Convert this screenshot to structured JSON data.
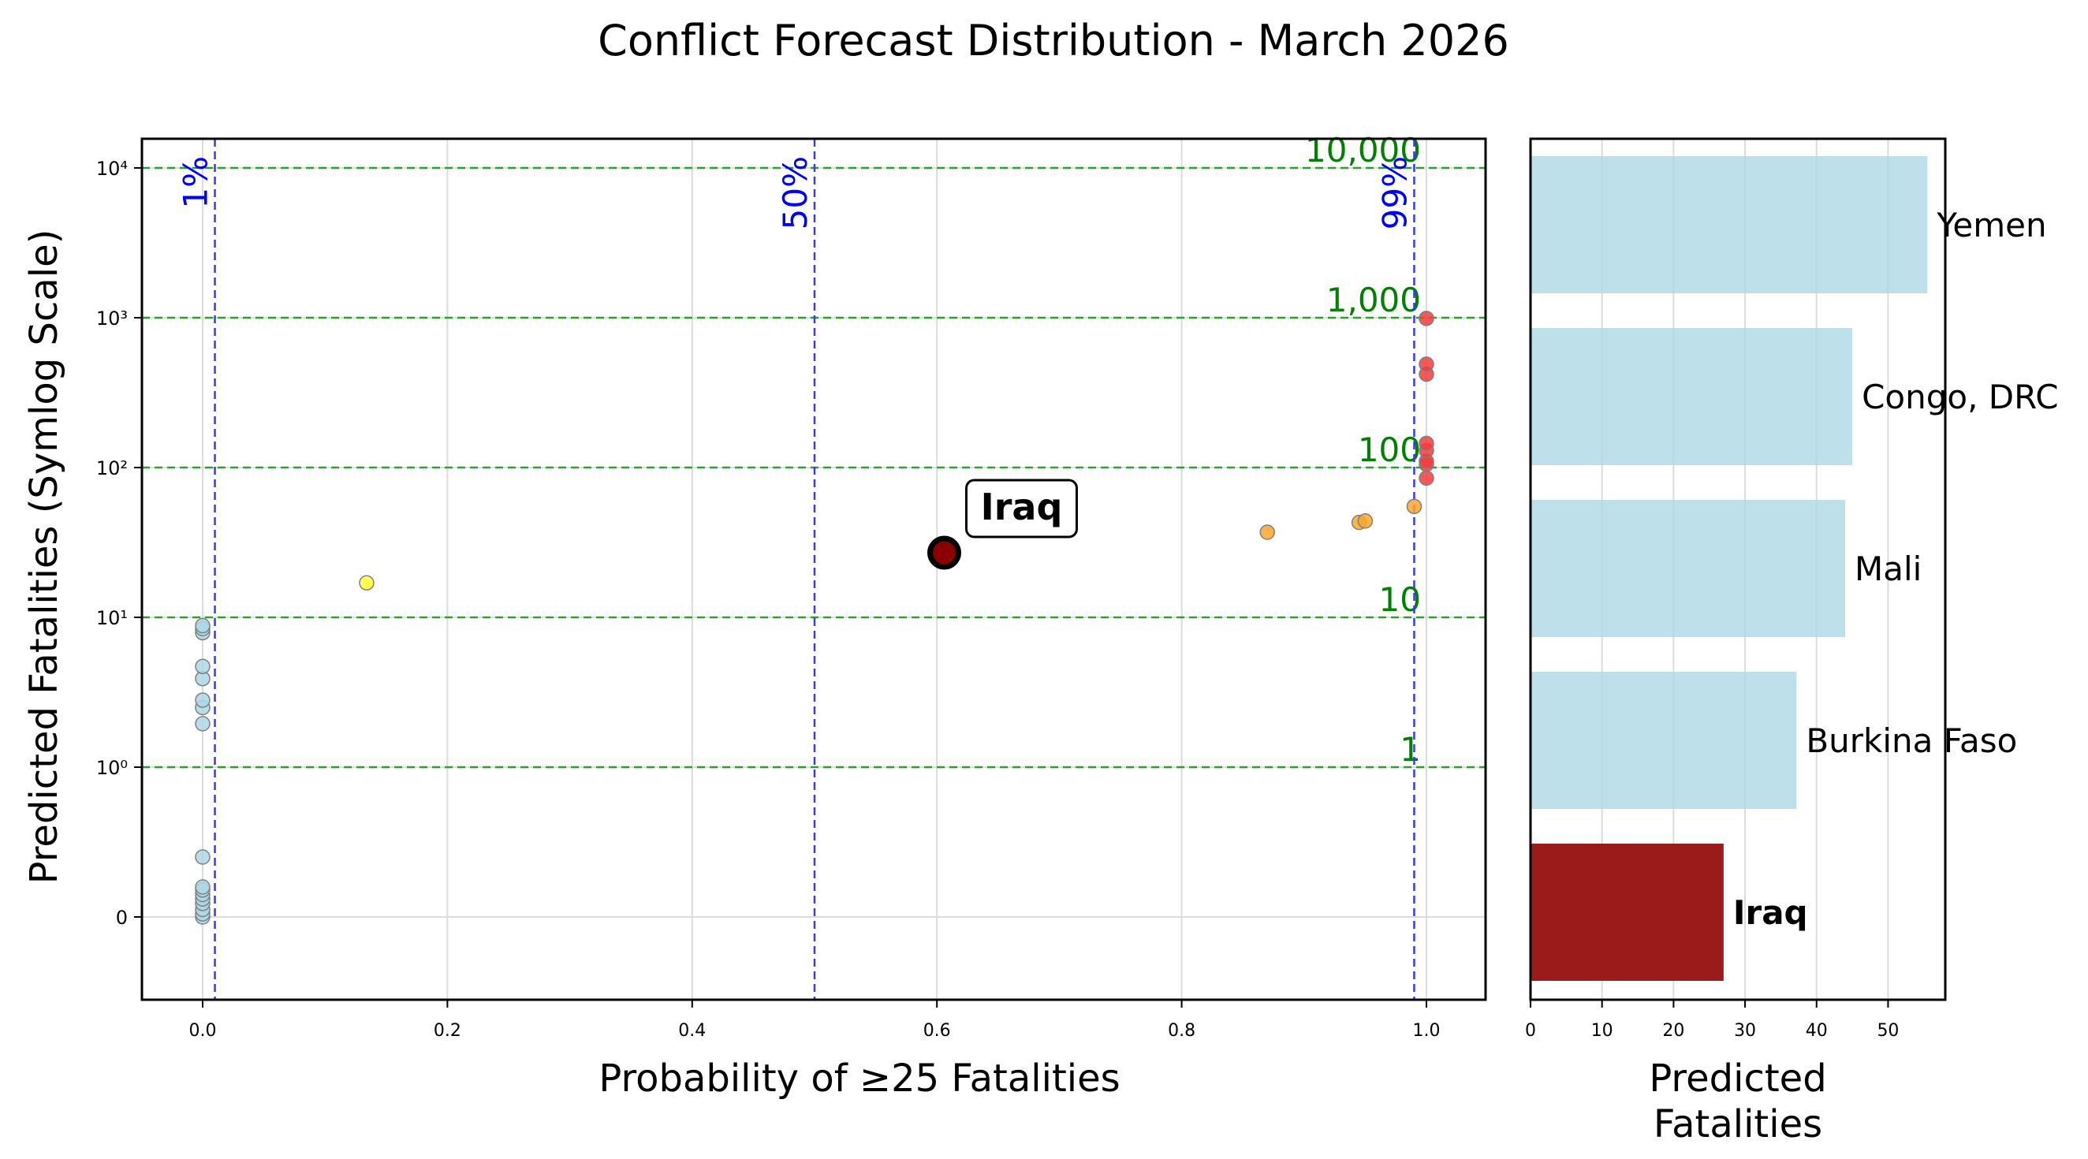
{
  "title": "Conflict Forecast Distribution - March 2026",
  "colors": {
    "background": "#ffffff",
    "grid": "#dcdcdc",
    "threshold_line": "#2ca02c",
    "threshold_label": "#008000",
    "probability_line": "#3a3ae6",
    "probability_label": "#0000ff",
    "low": "#add8e6",
    "mid": "#ffff33",
    "high": "#ffa62b",
    "very_high": "#f23c3c",
    "highlight": "#8b0000",
    "bar": "#add8e6",
    "bar_highlight": "#9b1b1b"
  },
  "chart_data": [
    {
      "type": "scatter",
      "title": "",
      "xlabel": "Probability of ≥25 Fatalities",
      "ylabel": "Predicted Fatalities (Symlog Scale)",
      "yscale": "symlog",
      "xlim": [
        -0.05,
        1.05
      ],
      "grid": true,
      "x_ticks": [
        "0.0",
        "0.2",
        "0.4",
        "0.6",
        "0.8",
        "1.0"
      ],
      "y_ticks": [
        {
          "value": 0,
          "label": "0"
        },
        {
          "value": 1,
          "label": "10⁰"
        },
        {
          "value": 10,
          "label": "10¹"
        },
        {
          "value": 100,
          "label": "10²"
        },
        {
          "value": 1000,
          "label": "10³"
        },
        {
          "value": 10000,
          "label": "10⁴"
        }
      ],
      "threshold_lines": [
        {
          "value": 1,
          "label": "1"
        },
        {
          "value": 10,
          "label": "10"
        },
        {
          "value": 100,
          "label": "100"
        },
        {
          "value": 1000,
          "label": "1,000"
        },
        {
          "value": 10000,
          "label": "10,000"
        }
      ],
      "probability_lines": [
        {
          "value": 0.01,
          "label": "1%"
        },
        {
          "value": 0.5,
          "label": "50%"
        },
        {
          "value": 0.99,
          "label": "99%"
        }
      ],
      "points": [
        {
          "x": 0.0,
          "y": 0,
          "group": "low"
        },
        {
          "x": 0.0,
          "y": 0.02,
          "group": "low"
        },
        {
          "x": 0.0,
          "y": 0.05,
          "group": "low"
        },
        {
          "x": 0.0,
          "y": 0.09,
          "group": "low"
        },
        {
          "x": 0.0,
          "y": 0.12,
          "group": "low"
        },
        {
          "x": 0.0,
          "y": 0.15,
          "group": "low"
        },
        {
          "x": 0.0,
          "y": 0.18,
          "group": "low"
        },
        {
          "x": 0.0,
          "y": 0.2,
          "group": "low"
        },
        {
          "x": 0.0,
          "y": 0.4,
          "group": "low"
        },
        {
          "x": 0.0,
          "y": 1.95,
          "group": "low"
        },
        {
          "x": 0.0,
          "y": 2.5,
          "group": "low"
        },
        {
          "x": 0.0,
          "y": 2.8,
          "group": "low"
        },
        {
          "x": 0.0,
          "y": 3.9,
          "group": "low"
        },
        {
          "x": 0.0,
          "y": 4.7,
          "group": "low"
        },
        {
          "x": 0.0,
          "y": 7.9,
          "group": "low"
        },
        {
          "x": 0.0,
          "y": 8.4,
          "group": "low"
        },
        {
          "x": 0.0,
          "y": 8.8,
          "group": "low"
        },
        {
          "x": 0.134,
          "y": 17,
          "group": "mid"
        },
        {
          "x": 0.87,
          "y": 37,
          "group": "high"
        },
        {
          "x": 0.945,
          "y": 43,
          "group": "high"
        },
        {
          "x": 0.95,
          "y": 44,
          "group": "high"
        },
        {
          "x": 0.99,
          "y": 55,
          "group": "high"
        },
        {
          "x": 1.0,
          "y": 85,
          "group": "very_high"
        },
        {
          "x": 1.0,
          "y": 105,
          "group": "very_high"
        },
        {
          "x": 1.0,
          "y": 110,
          "group": "very_high"
        },
        {
          "x": 1.0,
          "y": 130,
          "group": "very_high"
        },
        {
          "x": 1.0,
          "y": 145,
          "group": "very_high"
        },
        {
          "x": 1.0,
          "y": 420,
          "group": "very_high"
        },
        {
          "x": 1.0,
          "y": 490,
          "group": "very_high"
        },
        {
          "x": 1.0,
          "y": 990,
          "group": "very_high"
        }
      ],
      "highlight": {
        "x": 0.606,
        "y": 27,
        "label": "Iraq"
      }
    },
    {
      "type": "bar",
      "orientation": "horizontal",
      "xlabel": "Predicted\nFatalities",
      "xlim": [
        0,
        58
      ],
      "x_ticks": [
        0,
        10,
        20,
        30,
        40,
        50
      ],
      "grid": true,
      "categories": [
        "Yemen",
        "Congo, DRC",
        "Mali",
        "Burkina Faso",
        "Iraq"
      ],
      "values": [
        55.5,
        45,
        44,
        37.2,
        27
      ],
      "highlight_category": "Iraq"
    }
  ]
}
